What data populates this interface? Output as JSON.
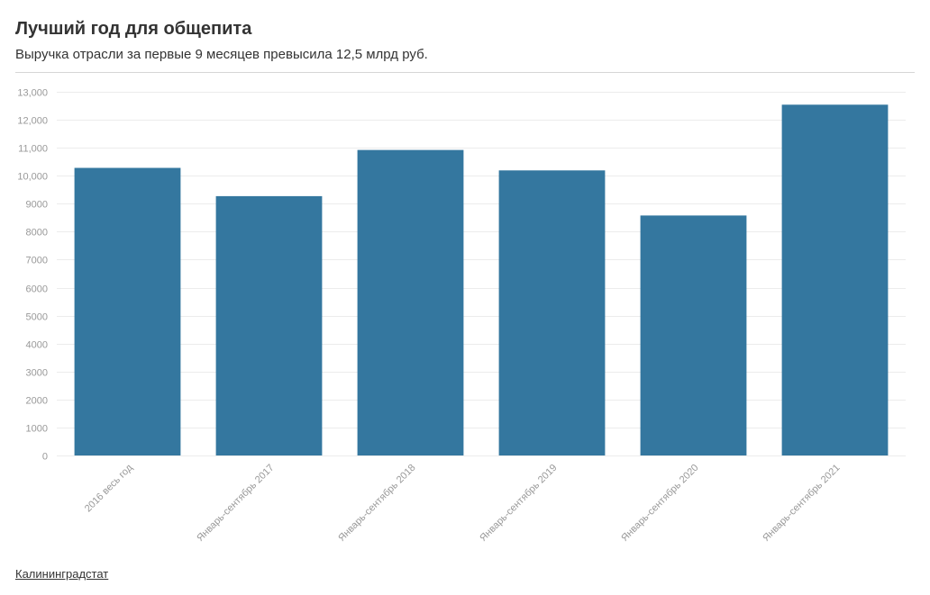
{
  "header": {
    "title": "Лучший год для общепита",
    "subtitle": "Выручка отрасли за первые 9 месяцев превысила 12,5 млрд руб."
  },
  "footer": {
    "source": "Калининградстат"
  },
  "colors": {
    "bar": "#34779f",
    "grid": "#ececec",
    "axis_text": "#999999"
  },
  "chart_data": {
    "type": "bar",
    "title": "",
    "xlabel": "",
    "ylabel": "",
    "categories": [
      "2016 весь год",
      "Январь-сентябрь 2017",
      "Январь-сентябрь 2018",
      "Январь-сентябрь 2019",
      "Январь-сентябрь 2020",
      "Январь-сентябрь 2021"
    ],
    "values": [
      10280,
      9270,
      10920,
      10190,
      8580,
      12540
    ],
    "ylim": [
      0,
      13000
    ],
    "yticks": [
      0,
      1000,
      2000,
      3000,
      4000,
      5000,
      6000,
      7000,
      8000,
      9000,
      10000,
      11000,
      12000,
      13000
    ],
    "ytick_labels": [
      "0",
      "1000",
      "2000",
      "3000",
      "4000",
      "5000",
      "6000",
      "7000",
      "8000",
      "9000",
      "10,000",
      "11,000",
      "12,000",
      "13,000"
    ],
    "grid": true,
    "legend": "none"
  }
}
